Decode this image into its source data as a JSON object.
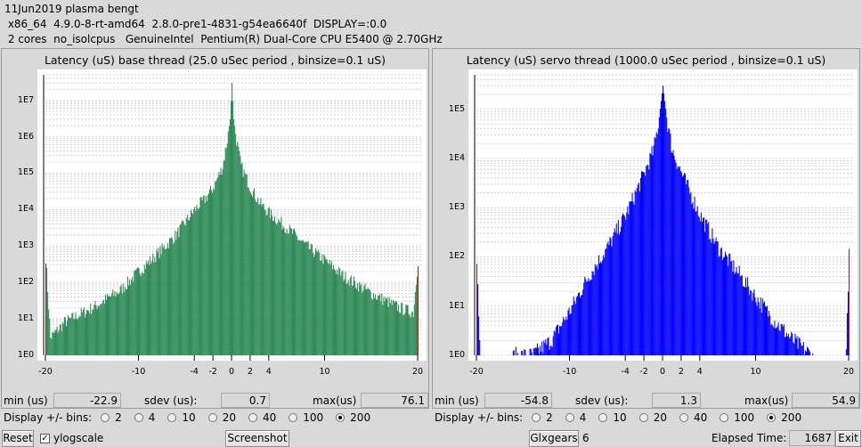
{
  "header": {
    "line1": "11Jun2019 plasma bengt",
    "line2": " x86_64  4.9.0-8-rt-amd64  2.8.0-pre1-4831-g54ea6640f  DISPLAY=:0.0",
    "line3": " 2 cores  no_isolcpus   GenuineIntel  Pentium(R) Dual-Core CPU E5400 @ 2.70GHz"
  },
  "panels": [
    {
      "title": "Latency (uS) base thread (25.0 uSec period , binsize=0.1 uS)",
      "bar_color": "#2e8b57",
      "ytick_labels": [
        "1E7",
        "1E6",
        "1E5",
        "1E4",
        "1E3",
        "1E2",
        "1E1",
        "1E0"
      ],
      "xtick_labels": [
        "-20",
        "-10",
        "-4",
        "-2",
        "0",
        "2",
        "4",
        "10",
        "20"
      ],
      "stats": {
        "min_label": "min (us)",
        "min_value": "-22.9",
        "sdev_label": "sdev (us):",
        "sdev_value": "0.7",
        "max_label": "max(us)",
        "max_value": "76.1"
      },
      "bins_label": "Display +/- bins:",
      "bins_options": [
        "2",
        "4",
        "10",
        "20",
        "40",
        "100",
        "200"
      ],
      "bins_selected": "200"
    },
    {
      "title": "Latency (uS) servo thread (1000.0 uSec period , binsize=0.1 uS)",
      "bar_color": "#0000ff",
      "ytick_labels": [
        "1E5",
        "1E4",
        "1E3",
        "1E2",
        "1E1",
        "1E0"
      ],
      "xtick_labels": [
        "-20",
        "-10",
        "-4",
        "-2",
        "0",
        "2",
        "4",
        "10",
        "20"
      ],
      "stats": {
        "min_label": "min (us)",
        "min_value": "-54.8",
        "sdev_label": "sdev (us):",
        "sdev_value": "1.3",
        "max_label": "max(us)",
        "max_value": "54.9"
      },
      "bins_label": "Display +/- bins:",
      "bins_options": [
        "2",
        "4",
        "10",
        "20",
        "40",
        "100",
        "200"
      ],
      "bins_selected": "200"
    }
  ],
  "chart_data": [
    {
      "type": "bar",
      "title": "Latency (uS) base thread (25.0 uSec period , binsize=0.1 uS)",
      "x_unit": "uS",
      "xlim": [
        -20,
        20
      ],
      "y_scale": "log",
      "ylim": [
        1,
        50000000
      ],
      "yticks": [
        1,
        10,
        100,
        1000,
        10000,
        100000,
        1000000,
        10000000
      ],
      "grid": true,
      "color": "#2e8b57",
      "profile": {
        "x": [
          -20,
          -19.5,
          -18,
          -15,
          -12,
          -10,
          -8,
          -6,
          -4,
          -3,
          -2,
          -1,
          -0.5,
          -0.2,
          0,
          0.2,
          0.5,
          1,
          2,
          3,
          4,
          6,
          8,
          10,
          12,
          15,
          18,
          19.5,
          20
        ],
        "count": [
          500,
          3,
          8,
          20,
          60,
          200,
          600,
          2000,
          10000,
          18000,
          40000,
          150000,
          800000,
          3000000,
          30000000,
          3000000,
          800000,
          150000,
          40000,
          15000,
          8000,
          3000,
          1000,
          400,
          150,
          50,
          20,
          15,
          400
        ]
      }
    },
    {
      "type": "bar",
      "title": "Latency (uS) servo thread (1000.0 uSec period , binsize=0.1 uS)",
      "x_unit": "uS",
      "xlim": [
        -20,
        20
      ],
      "y_scale": "log",
      "ylim": [
        1,
        500000
      ],
      "yticks": [
        1,
        10,
        100,
        1000,
        10000,
        100000
      ],
      "grid": true,
      "color": "#0000ff",
      "profile": {
        "x": [
          -20,
          -19.5,
          -18,
          -16,
          -14,
          -12,
          -10,
          -8,
          -6,
          -4,
          -2,
          -1,
          -0.5,
          0,
          0.5,
          1,
          2,
          4,
          6,
          8,
          10,
          12,
          14,
          16,
          18,
          19.5,
          20
        ],
        "count": [
          100,
          0,
          0,
          1,
          1,
          2,
          8,
          40,
          150,
          700,
          5000,
          15000,
          50000,
          300000,
          50000,
          15000,
          5000,
          700,
          150,
          50,
          15,
          5,
          2,
          1,
          0,
          0,
          100
        ]
      }
    }
  ],
  "footer": {
    "reset_label": "Reset",
    "ylogscale_label": "ylogscale",
    "ylogscale_checked": "✓",
    "screenshot_label": "Screenshot",
    "glxgears_label": "Glxgears",
    "glxgears_count": "6",
    "elapsed_label": "Elapsed Time:",
    "elapsed_value": "1687",
    "exit_label": "Exit"
  }
}
